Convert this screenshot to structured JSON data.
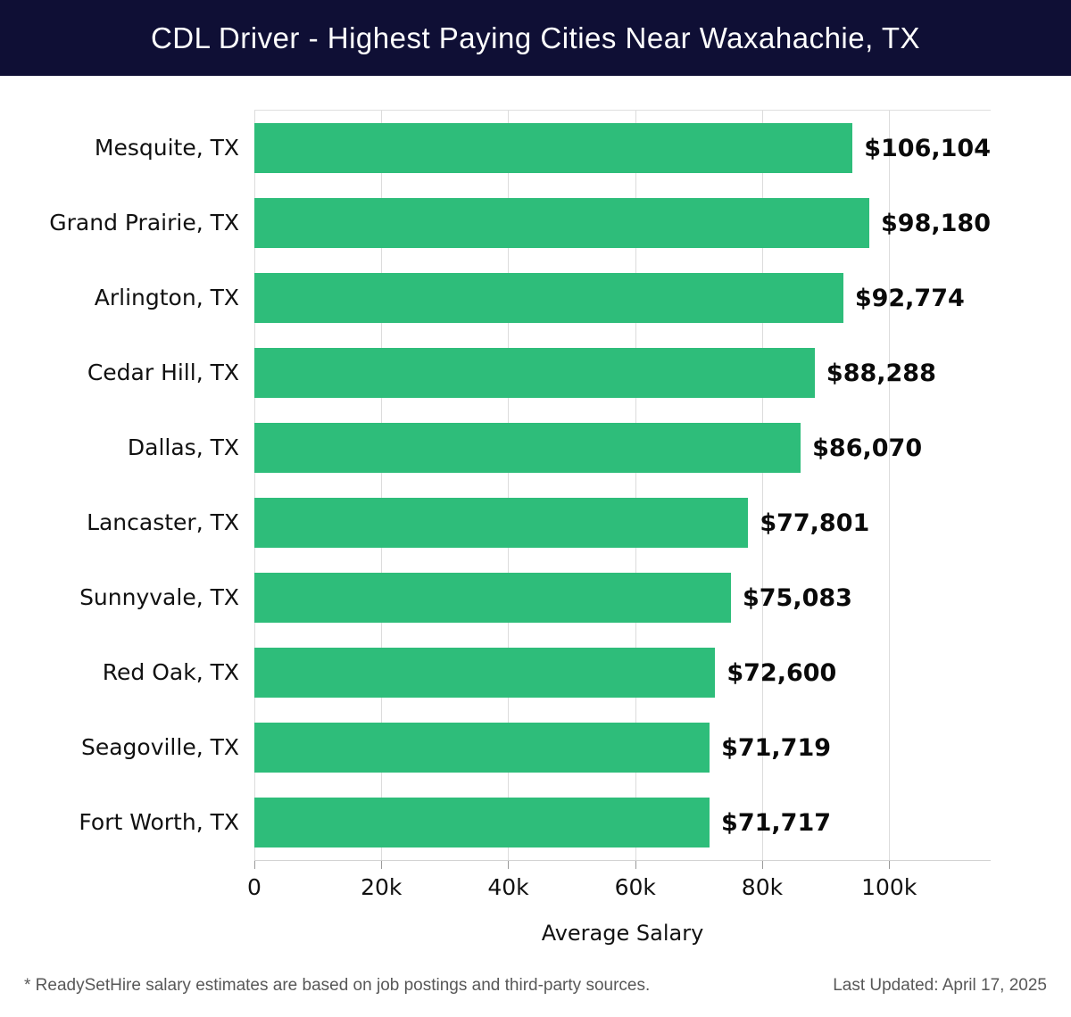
{
  "header": {
    "title": "CDL Driver - Highest Paying Cities Near Waxahachie, TX"
  },
  "chart_data": {
    "type": "bar",
    "orientation": "horizontal",
    "title": "CDL Driver - Highest Paying Cities Near Waxahachie, TX",
    "categories": [
      "Mesquite, TX",
      "Grand Prairie, TX",
      "Arlington, TX",
      "Cedar Hill, TX",
      "Dallas, TX",
      "Lancaster, TX",
      "Sunnyvale, TX",
      "Red Oak, TX",
      "Seagoville, TX",
      "Fort Worth, TX"
    ],
    "values": [
      106104,
      98180,
      92774,
      88288,
      86070,
      77801,
      75083,
      72600,
      71719,
      71717
    ],
    "value_labels": [
      "$106,104",
      "$98,180",
      "$92,774",
      "$88,288",
      "$86,070",
      "$77,801",
      "$75,083",
      "$72,600",
      "$71,719",
      "$71,717"
    ],
    "xlabel": "Average Salary",
    "ylabel": "",
    "x_ticks": [
      "0",
      "20k",
      "40k",
      "60k",
      "80k",
      "100k"
    ],
    "x_tick_values": [
      0,
      20000,
      40000,
      60000,
      80000,
      100000
    ],
    "xlim": [
      0,
      116000
    ],
    "grid": true,
    "legend": false,
    "bar_color": "#2ebd7a",
    "gridline_color": "#dcdcdc",
    "header_bg_color": "#0f0f35"
  },
  "footer": {
    "disclaimer": "* ReadySetHire salary estimates are based on job postings and third-party sources.",
    "last_updated": "Last Updated: April 17, 2025"
  }
}
